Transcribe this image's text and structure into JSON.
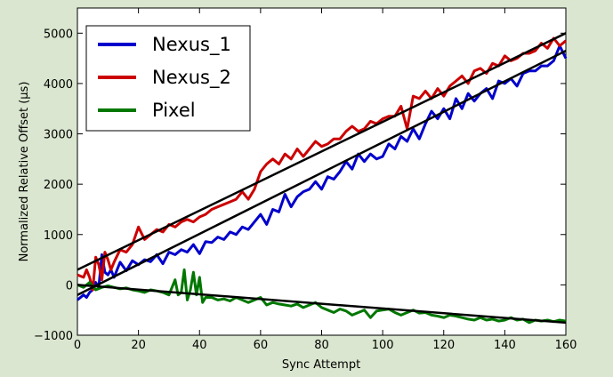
{
  "chart_data": {
    "type": "line",
    "xlabel": "Sync Attempt",
    "ylabel": "Normalized Relative Offset (μs)",
    "xlim": [
      0,
      160
    ],
    "ylim": [
      -1000,
      5500
    ],
    "xticks": [
      0,
      20,
      40,
      60,
      80,
      100,
      120,
      140,
      160
    ],
    "yticks": [
      -1000,
      0,
      1000,
      2000,
      3000,
      4000,
      5000
    ],
    "grid": false,
    "legend_position": "top-left",
    "series": [
      {
        "name": "Nexus_1",
        "color": "#0000cc",
        "x": [
          0,
          2,
          3,
          4,
          5,
          6,
          7,
          8,
          9,
          10,
          11,
          12,
          14,
          16,
          18,
          20,
          22,
          24,
          26,
          28,
          30,
          32,
          34,
          36,
          38,
          40,
          42,
          44,
          46,
          48,
          50,
          52,
          54,
          56,
          58,
          60,
          62,
          64,
          66,
          68,
          70,
          72,
          74,
          76,
          78,
          80,
          82,
          84,
          86,
          88,
          90,
          92,
          94,
          96,
          98,
          100,
          102,
          104,
          106,
          108,
          110,
          112,
          114,
          116,
          118,
          120,
          122,
          124,
          126,
          128,
          130,
          132,
          134,
          136,
          138,
          140,
          142,
          144,
          146,
          148,
          150,
          152,
          154,
          156,
          158,
          160
        ],
        "values": [
          -300,
          -200,
          -250,
          -150,
          -100,
          50,
          -50,
          600,
          250,
          200,
          300,
          150,
          450,
          280,
          480,
          400,
          500,
          460,
          600,
          420,
          650,
          600,
          700,
          650,
          800,
          620,
          860,
          840,
          950,
          900,
          1050,
          1000,
          1150,
          1100,
          1250,
          1400,
          1200,
          1500,
          1450,
          1800,
          1550,
          1750,
          1850,
          1900,
          2050,
          1900,
          2150,
          2100,
          2250,
          2450,
          2300,
          2600,
          2450,
          2600,
          2500,
          2550,
          2800,
          2700,
          2950,
          2850,
          3100,
          2900,
          3200,
          3450,
          3300,
          3500,
          3300,
          3700,
          3500,
          3800,
          3650,
          3800,
          3900,
          3700,
          4050,
          4000,
          4100,
          3950,
          4200,
          4250,
          4250,
          4350,
          4350,
          4450,
          4750,
          4500
        ]
      },
      {
        "name": "Nexus_2",
        "color": "#cc0000",
        "x": [
          0,
          2,
          3,
          4,
          5,
          6,
          7,
          8,
          9,
          10,
          11,
          12,
          14,
          16,
          18,
          20,
          22,
          24,
          26,
          28,
          30,
          32,
          34,
          36,
          38,
          40,
          42,
          44,
          46,
          48,
          50,
          52,
          54,
          56,
          58,
          60,
          62,
          64,
          66,
          68,
          70,
          72,
          74,
          76,
          78,
          80,
          82,
          84,
          86,
          88,
          90,
          92,
          94,
          96,
          98,
          100,
          102,
          104,
          106,
          108,
          110,
          112,
          114,
          116,
          118,
          120,
          122,
          124,
          126,
          128,
          130,
          132,
          134,
          136,
          138,
          140,
          142,
          144,
          146,
          148,
          150,
          152,
          154,
          156,
          158,
          160
        ],
        "values": [
          200,
          150,
          300,
          150,
          -100,
          550,
          400,
          100,
          650,
          500,
          300,
          450,
          700,
          650,
          800,
          1150,
          900,
          1000,
          1100,
          1050,
          1200,
          1150,
          1250,
          1300,
          1250,
          1350,
          1400,
          1500,
          1550,
          1600,
          1650,
          1700,
          1850,
          1700,
          1900,
          2250,
          2400,
          2500,
          2400,
          2600,
          2500,
          2700,
          2550,
          2700,
          2850,
          2750,
          2800,
          2900,
          2900,
          3050,
          3150,
          3050,
          3100,
          3250,
          3200,
          3300,
          3350,
          3350,
          3550,
          3100,
          3750,
          3700,
          3850,
          3700,
          3900,
          3750,
          3950,
          4050,
          4150,
          4000,
          4250,
          4300,
          4200,
          4400,
          4350,
          4550,
          4450,
          4500,
          4600,
          4600,
          4650,
          4800,
          4700,
          4900,
          4750,
          4850
        ]
      },
      {
        "name": "Pixel",
        "color": "#007700",
        "x": [
          0,
          2,
          4,
          6,
          8,
          10,
          12,
          14,
          16,
          18,
          20,
          22,
          24,
          26,
          28,
          30,
          32,
          33,
          34,
          35,
          36,
          37,
          38,
          39,
          40,
          41,
          42,
          44,
          46,
          48,
          50,
          52,
          54,
          56,
          58,
          60,
          62,
          64,
          66,
          68,
          70,
          72,
          74,
          76,
          78,
          80,
          82,
          84,
          86,
          88,
          90,
          92,
          94,
          96,
          98,
          100,
          102,
          104,
          106,
          108,
          110,
          112,
          114,
          116,
          118,
          120,
          122,
          124,
          126,
          128,
          130,
          132,
          134,
          136,
          138,
          140,
          142,
          144,
          146,
          148,
          150,
          152,
          154,
          156,
          158,
          160
        ],
        "values": [
          0,
          -50,
          50,
          -100,
          -50,
          -20,
          -50,
          -80,
          -60,
          -100,
          -120,
          -150,
          -100,
          -120,
          -150,
          -200,
          100,
          -200,
          -150,
          300,
          -300,
          -100,
          250,
          -200,
          150,
          -350,
          -250,
          -250,
          -300,
          -280,
          -320,
          -250,
          -300,
          -350,
          -300,
          -250,
          -400,
          -350,
          -380,
          -400,
          -420,
          -380,
          -450,
          -400,
          -350,
          -450,
          -500,
          -550,
          -480,
          -520,
          -600,
          -550,
          -500,
          -650,
          -520,
          -500,
          -480,
          -550,
          -600,
          -550,
          -500,
          -560,
          -550,
          -600,
          -620,
          -650,
          -600,
          -620,
          -650,
          -680,
          -700,
          -650,
          -700,
          -680,
          -720,
          -700,
          -650,
          -700,
          -680,
          -750,
          -700,
          -720,
          -700,
          -730,
          -700,
          -720
        ]
      }
    ],
    "fit_lines": [
      {
        "x": [
          0,
          160
        ],
        "values": [
          -200,
          4650
        ]
      },
      {
        "x": [
          0,
          160
        ],
        "values": [
          300,
          5000
        ]
      },
      {
        "x": [
          0,
          160
        ],
        "values": [
          0,
          -750
        ]
      }
    ],
    "fit_color": "#000000"
  }
}
